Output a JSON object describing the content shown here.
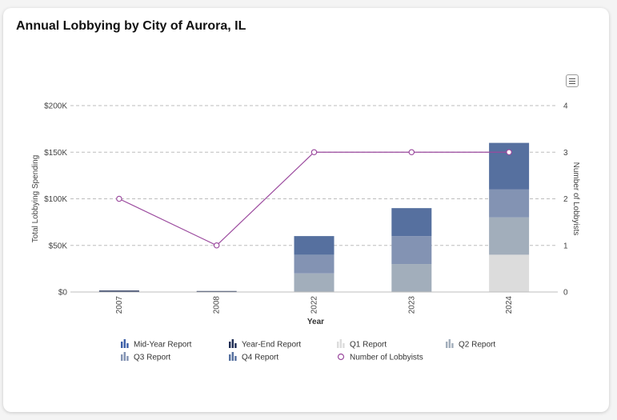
{
  "chart_data": {
    "type": "bar",
    "title": "Annual Lobbying by City of Aurora, IL",
    "xlabel": "Year",
    "ylabel": "Total Lobbying Spending",
    "y2label": "Number of Lobbyists",
    "categories": [
      "2007",
      "2008",
      "2022",
      "2023",
      "2024"
    ],
    "ylim": [
      0,
      200000
    ],
    "y_ticks": [
      "$0",
      "$50K",
      "$100K",
      "$150K",
      "$200K"
    ],
    "y2lim": [
      0,
      4
    ],
    "y2_ticks": [
      "0",
      "1",
      "2",
      "3",
      "4"
    ],
    "grid": true,
    "legend_position": "bottom",
    "series": [
      {
        "name": "Mid-Year Report",
        "type": "bar",
        "color": "#3c5fa8",
        "values": [
          500,
          0,
          0,
          0,
          0
        ]
      },
      {
        "name": "Year-End Report",
        "type": "bar",
        "color": "#1e2d54",
        "values": [
          500,
          500,
          0,
          0,
          0
        ]
      },
      {
        "name": "Q1 Report",
        "type": "bar",
        "color": "#dcdcdc",
        "values": [
          0,
          0,
          0,
          0,
          40000
        ]
      },
      {
        "name": "Q2 Report",
        "type": "bar",
        "color": "#a2aebb",
        "values": [
          0,
          0,
          20000,
          30000,
          40000
        ]
      },
      {
        "name": "Q3 Report",
        "type": "bar",
        "color": "#8393b3",
        "values": [
          0,
          0,
          20000,
          30000,
          30000
        ]
      },
      {
        "name": "Q4 Report",
        "type": "bar",
        "color": "#56709f",
        "values": [
          0,
          0,
          20000,
          30000,
          50000
        ]
      },
      {
        "name": "Number of Lobbyists",
        "type": "line",
        "axis": "right",
        "color": "#9b4a9e",
        "values": [
          2,
          1,
          3,
          3,
          3
        ]
      }
    ]
  }
}
